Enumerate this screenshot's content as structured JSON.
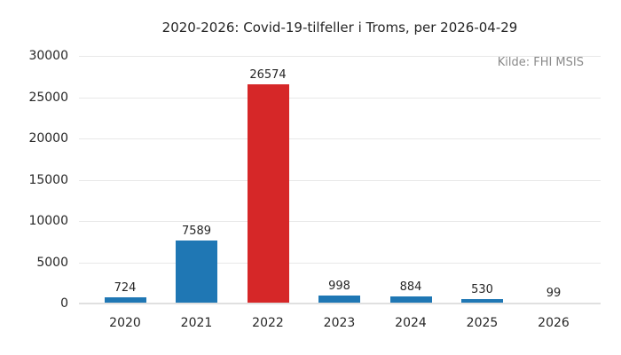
{
  "chart_data": {
    "type": "bar",
    "title": "2020-2026: Covid-19-tilfeller i Troms, per 2026-04-29",
    "source_note": "Kilde: FHI MSIS",
    "categories": [
      "2020",
      "2021",
      "2022",
      "2023",
      "2024",
      "2025",
      "2026"
    ],
    "values": [
      724,
      7589,
      26574,
      998,
      884,
      530,
      99
    ],
    "bar_colors": [
      "#1f77b4",
      "#1f77b4",
      "#d62728",
      "#1f77b4",
      "#1f77b4",
      "#1f77b4",
      "#1f77b4"
    ],
    "value_labels": [
      "724",
      "7589",
      "26574",
      "998",
      "884",
      "530",
      "99"
    ],
    "xlabel": "",
    "ylabel": "",
    "ylim": [
      0,
      30000
    ],
    "yticks": [
      0,
      5000,
      10000,
      15000,
      20000,
      25000,
      30000
    ],
    "grid": "horizontal",
    "legend": "none",
    "colors": {
      "bar_default": "#1f77b4",
      "bar_highlight": "#d62728",
      "grid": "#e8e8e8",
      "axis_line": "#e0e0e0",
      "text": "#262626",
      "source_text": "#8a8a8a",
      "background": "#ffffff"
    }
  }
}
